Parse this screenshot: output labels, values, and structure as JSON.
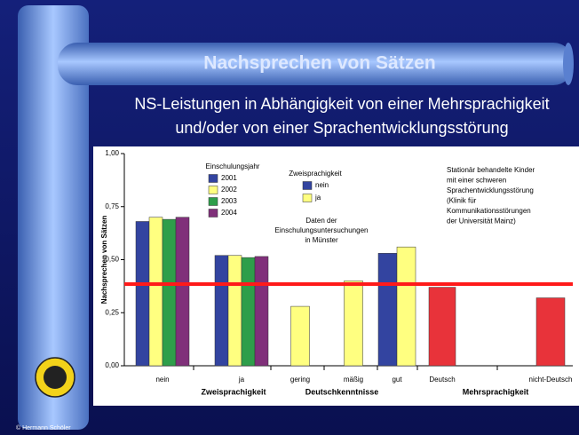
{
  "slide": {
    "title": "Nachsprechen von Sätzen",
    "subtitle": [
      "NS-Leistungen in Abhängigkeit von einer Mehrsprachigkeit",
      "und/oder von einer Sprachentwicklungsstörung"
    ],
    "footer": "© Hermann Schöler"
  },
  "chart_data": {
    "type": "bar",
    "y_label": "Nachsprechen von Sätzen",
    "categories": [
      "nein",
      "ja",
      "gering",
      "mäßig",
      "gut",
      "Deutsch",
      "nicht-Deutsch"
    ],
    "groups": [
      "Zweisprachigkeit",
      "Deutschkenntnisse",
      "Mehrsprachigkeit"
    ],
    "ylim": [
      0,
      1
    ],
    "yticks": [
      {
        "value": 0,
        "label": "0,00"
      },
      {
        "value": 0.25,
        "label": "0,25"
      },
      {
        "value": 0.5,
        "label": "0,50"
      },
      {
        "value": 0.75,
        "label": "0,75"
      },
      {
        "value": 1,
        "label": "1,00"
      }
    ],
    "grid": false,
    "series": [
      {
        "name": "2001",
        "color": "#3344a0",
        "values": [
          0.68,
          0.52,
          null,
          null,
          null,
          null,
          null
        ]
      },
      {
        "name": "2002",
        "color": "#ffff80",
        "values": [
          0.7,
          0.52,
          null,
          null,
          null,
          null,
          null
        ]
      },
      {
        "name": "2003",
        "color": "#2e9e4a",
        "values": [
          0.69,
          0.51,
          null,
          null,
          null,
          null,
          null
        ]
      },
      {
        "name": "2004",
        "color": "#80307a",
        "values": [
          0.7,
          0.515,
          null,
          null,
          null,
          null,
          null
        ]
      },
      {
        "name": "nein",
        "color": "#3344a0",
        "values": [
          null,
          null,
          null,
          null,
          0.53,
          null,
          null
        ]
      },
      {
        "name": "ja",
        "color": "#ffff80",
        "values": [
          null,
          null,
          0.28,
          0.4,
          0.56,
          null,
          null
        ]
      },
      {
        "color": "#e8333a",
        "values": [
          null,
          null,
          null,
          null,
          null,
          0.37,
          0.32
        ]
      }
    ],
    "legend_titles": [
      "Einschulungsjahr",
      "Zweisprachigkeit"
    ],
    "reference_line": {
      "value": 0.385,
      "color": "#ff1a1a"
    },
    "annotations": [
      [
        "Daten der",
        "Einschulungsuntersuchungen",
        "in Münster"
      ],
      [
        "Stationär behandelte Kinder",
        "mit einer schweren",
        "Sprachentwicklungsstörung",
        "(Klinik für",
        "Kommunikationsstörungen",
        "der Universität Mainz)"
      ]
    ]
  }
}
